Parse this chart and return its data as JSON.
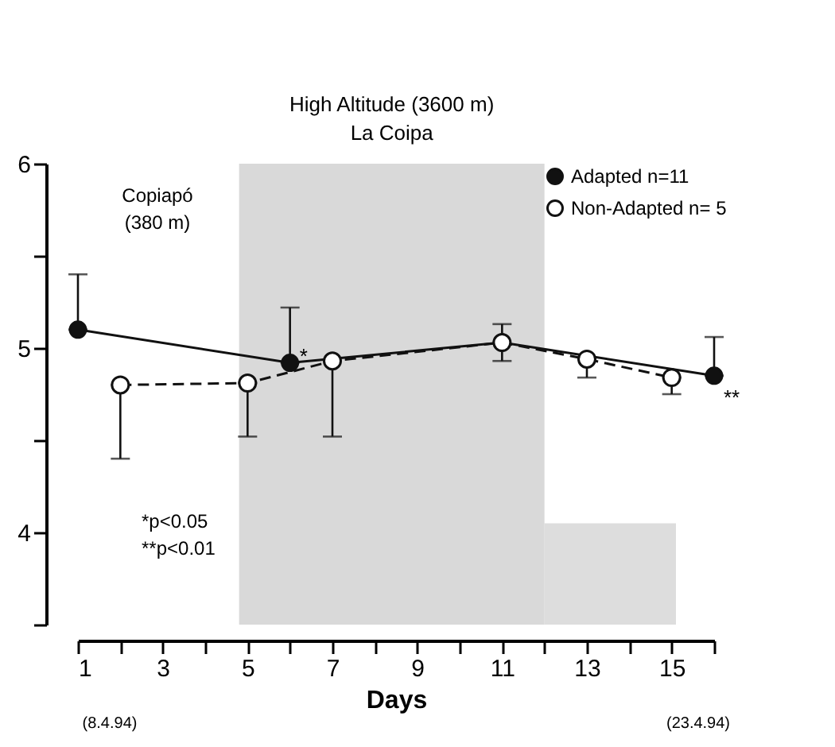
{
  "chart_data": {
    "type": "line",
    "xlabel": "Days",
    "series": [
      {
        "name": "Adapted n=11",
        "color": "#111111",
        "line_style": "solid",
        "marker": "circle",
        "x": [
          1,
          6,
          11,
          16
        ],
        "values": [
          5.1,
          4.92,
          5.03,
          4.85
        ],
        "errors": [
          [
            5.1,
            5.4
          ],
          [
            4.92,
            5.22
          ],
          0.1,
          [
            4.85,
            5.06
          ]
        ]
      },
      {
        "name": "Non-Adapted n= 5",
        "color": "#111111",
        "line_style": "dashed",
        "marker": "circle",
        "x": [
          2,
          5,
          7,
          11,
          13,
          15
        ],
        "values": [
          4.8,
          4.81,
          4.93,
          5.03,
          4.94,
          4.84
        ],
        "errors": [
          [
            4.4,
            4.8
          ],
          [
            4.52,
            4.81
          ],
          [
            4.52,
            4.93
          ],
          null,
          [
            4.84,
            4.94
          ],
          [
            4.75,
            4.84
          ]
        ]
      },
      {
        "type": "area",
        "color": "#d9d9d9",
        "x": [
          12,
          15.1
        ],
        "values": [
          4.05,
          4.05
        ]
      }
    ],
    "bands": [
      {
        "axis": "x",
        "from": 4.8,
        "to": 12,
        "label": "High Altitude (3600 m)\nLa Coipa",
        "color": "#cfcfcf"
      }
    ],
    "annotations": [
      "Copiapó\n(380 m)",
      "*p<0.05\n**p<0.01",
      "(8.4.94)",
      "(23.4.94)",
      {
        "text": "*",
        "x": 6,
        "y": 4.92
      },
      {
        "text": "**",
        "x": 16,
        "y": 4.85
      }
    ],
    "xlim": [
      1,
      16
    ],
    "xticks": [
      1,
      {
        "value": 2,
        "label": null
      },
      3,
      {
        "value": 4,
        "label": null
      },
      5,
      {
        "value": 6,
        "label": null
      },
      7,
      {
        "value": 8,
        "label": null
      },
      9,
      {
        "value": 10,
        "label": null
      },
      11,
      {
        "value": 12,
        "label": null
      },
      13,
      {
        "value": 14,
        "label": null
      },
      15,
      {
        "value": 16,
        "label": null
      }
    ],
    "ylim": [
      3.5,
      6
    ],
    "yticks": [
      {
        "value": 3.5,
        "label": null
      },
      4,
      {
        "value": 4.5,
        "label": null
      },
      5,
      {
        "value": 5.5,
        "label": null
      },
      6
    ],
    "grid": false,
    "legend": "top right"
  }
}
